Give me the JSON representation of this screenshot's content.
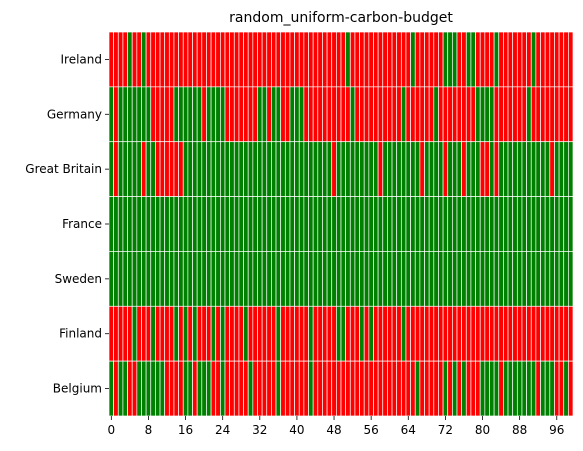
{
  "chart_data": {
    "type": "heatmap",
    "title": "random_uniform-carbon-budget",
    "xlabel": "",
    "ylabel": "",
    "x_tick_labels": [
      "0",
      "8",
      "16",
      "24",
      "32",
      "40",
      "48",
      "56",
      "64",
      "72",
      "80",
      "88",
      "96"
    ],
    "x_tick_values": [
      0,
      8,
      16,
      24,
      32,
      40,
      48,
      56,
      64,
      72,
      80,
      88,
      96
    ],
    "n_columns": 100,
    "grid": false,
    "legend": "none",
    "colors": {
      "1": "#ff0000",
      "0": "#008000",
      "separator": "#ffffff"
    },
    "rows": [
      {
        "label": "Ireland",
        "values": [
          1,
          1,
          1,
          1,
          0,
          1,
          1,
          0,
          1,
          1,
          1,
          1,
          1,
          1,
          1,
          1,
          1,
          1,
          1,
          1,
          1,
          1,
          1,
          1,
          1,
          1,
          1,
          1,
          1,
          1,
          1,
          1,
          1,
          1,
          1,
          1,
          1,
          1,
          1,
          1,
          1,
          1,
          1,
          1,
          1,
          1,
          1,
          1,
          1,
          1,
          1,
          0,
          1,
          1,
          1,
          1,
          1,
          1,
          1,
          1,
          1,
          1,
          1,
          1,
          1,
          0,
          1,
          1,
          1,
          1,
          1,
          1,
          0,
          0,
          0,
          1,
          1,
          0,
          0,
          1,
          1,
          1,
          1,
          0,
          1,
          1,
          1,
          1,
          1,
          1,
          1,
          0,
          1,
          1,
          1,
          1,
          1,
          1,
          1,
          1
        ]
      },
      {
        "label": "Germany",
        "values": [
          0,
          1,
          0,
          0,
          0,
          0,
          0,
          0,
          0,
          1,
          1,
          1,
          1,
          1,
          0,
          0,
          0,
          0,
          0,
          0,
          1,
          0,
          0,
          0,
          0,
          1,
          1,
          1,
          1,
          1,
          1,
          1,
          0,
          0,
          1,
          0,
          0,
          1,
          1,
          0,
          0,
          0,
          1,
          1,
          1,
          1,
          1,
          1,
          1,
          1,
          1,
          1,
          0,
          1,
          1,
          1,
          1,
          1,
          1,
          1,
          1,
          1,
          1,
          0,
          1,
          1,
          1,
          1,
          1,
          1,
          0,
          1,
          1,
          1,
          1,
          1,
          1,
          1,
          1,
          0,
          0,
          0,
          0,
          1,
          1,
          1,
          1,
          1,
          1,
          1,
          0,
          1,
          1,
          1,
          1,
          1,
          1,
          1,
          1,
          1
        ]
      },
      {
        "label": "Great Britain",
        "values": [
          0,
          1,
          0,
          0,
          0,
          0,
          0,
          1,
          0,
          0,
          1,
          1,
          1,
          1,
          1,
          1,
          0,
          0,
          0,
          0,
          0,
          0,
          0,
          0,
          0,
          0,
          0,
          0,
          0,
          0,
          0,
          0,
          0,
          0,
          0,
          0,
          0,
          0,
          0,
          0,
          0,
          0,
          0,
          0,
          0,
          0,
          0,
          0,
          1,
          0,
          0,
          0,
          0,
          0,
          0,
          0,
          0,
          0,
          1,
          0,
          0,
          0,
          0,
          0,
          0,
          0,
          0,
          1,
          0,
          0,
          0,
          0,
          1,
          0,
          0,
          0,
          1,
          0,
          0,
          0,
          1,
          1,
          0,
          1,
          0,
          0,
          0,
          0,
          0,
          0,
          0,
          0,
          0,
          0,
          0,
          1,
          0,
          0,
          0,
          0
        ]
      },
      {
        "label": "France",
        "values": [
          0,
          0,
          0,
          0,
          0,
          0,
          0,
          0,
          0,
          0,
          0,
          0,
          0,
          0,
          0,
          0,
          0,
          0,
          0,
          0,
          0,
          0,
          0,
          0,
          0,
          0,
          0,
          0,
          0,
          0,
          0,
          0,
          0,
          0,
          0,
          0,
          0,
          0,
          0,
          0,
          0,
          0,
          0,
          0,
          0,
          0,
          0,
          0,
          0,
          0,
          0,
          0,
          0,
          0,
          0,
          0,
          0,
          0,
          0,
          0,
          0,
          0,
          0,
          0,
          0,
          0,
          0,
          0,
          0,
          0,
          0,
          0,
          0,
          0,
          0,
          0,
          0,
          0,
          0,
          0,
          0,
          0,
          0,
          0,
          0,
          0,
          0,
          0,
          0,
          0,
          0,
          0,
          0,
          0,
          0,
          0,
          0,
          0,
          0,
          0
        ]
      },
      {
        "label": "Sweden",
        "values": [
          0,
          0,
          0,
          0,
          0,
          0,
          0,
          0,
          0,
          0,
          0,
          0,
          0,
          0,
          0,
          0,
          0,
          0,
          0,
          0,
          0,
          0,
          0,
          0,
          0,
          0,
          0,
          0,
          0,
          0,
          0,
          0,
          0,
          0,
          0,
          0,
          0,
          0,
          0,
          0,
          0,
          0,
          0,
          0,
          0,
          0,
          0,
          0,
          0,
          0,
          0,
          0,
          0,
          0,
          0,
          0,
          0,
          0,
          0,
          0,
          0,
          0,
          0,
          0,
          0,
          0,
          0,
          0,
          0,
          0,
          0,
          0,
          0,
          0,
          0,
          0,
          0,
          0,
          0,
          0,
          0,
          0,
          0,
          0,
          0,
          0,
          0,
          0,
          0,
          0,
          0,
          0,
          0,
          0,
          0,
          0,
          0,
          0,
          0,
          0
        ]
      },
      {
        "label": "Finland",
        "values": [
          1,
          1,
          1,
          1,
          1,
          0,
          1,
          1,
          1,
          0,
          1,
          1,
          1,
          1,
          0,
          1,
          0,
          1,
          0,
          1,
          1,
          1,
          0,
          1,
          0,
          1,
          1,
          1,
          1,
          0,
          1,
          1,
          1,
          1,
          1,
          1,
          0,
          1,
          1,
          1,
          1,
          1,
          1,
          0,
          1,
          1,
          1,
          1,
          1,
          0,
          0,
          1,
          1,
          1,
          0,
          1,
          0,
          1,
          1,
          1,
          1,
          1,
          1,
          0,
          1,
          1,
          1,
          1,
          1,
          1,
          1,
          1,
          1,
          1,
          1,
          1,
          1,
          1,
          1,
          1,
          1,
          1,
          1,
          1,
          1,
          1,
          1,
          1,
          1,
          1,
          1,
          1,
          1,
          1,
          1,
          1,
          1,
          1,
          1,
          1
        ]
      },
      {
        "label": "Belgium",
        "values": [
          0,
          1,
          0,
          0,
          1,
          1,
          0,
          0,
          0,
          0,
          0,
          0,
          1,
          1,
          1,
          1,
          0,
          0,
          1,
          0,
          0,
          0,
          1,
          1,
          0,
          1,
          1,
          1,
          1,
          1,
          0,
          1,
          1,
          1,
          1,
          1,
          0,
          1,
          1,
          1,
          1,
          1,
          1,
          0,
          1,
          1,
          1,
          1,
          1,
          1,
          1,
          1,
          1,
          1,
          1,
          1,
          1,
          1,
          1,
          1,
          1,
          1,
          1,
          1,
          1,
          1,
          0,
          1,
          1,
          1,
          1,
          1,
          0,
          1,
          0,
          1,
          0,
          1,
          1,
          1,
          0,
          0,
          0,
          0,
          1,
          0,
          0,
          0,
          0,
          0,
          0,
          0,
          1,
          0,
          0,
          0,
          1,
          1,
          0,
          1
        ]
      }
    ]
  }
}
